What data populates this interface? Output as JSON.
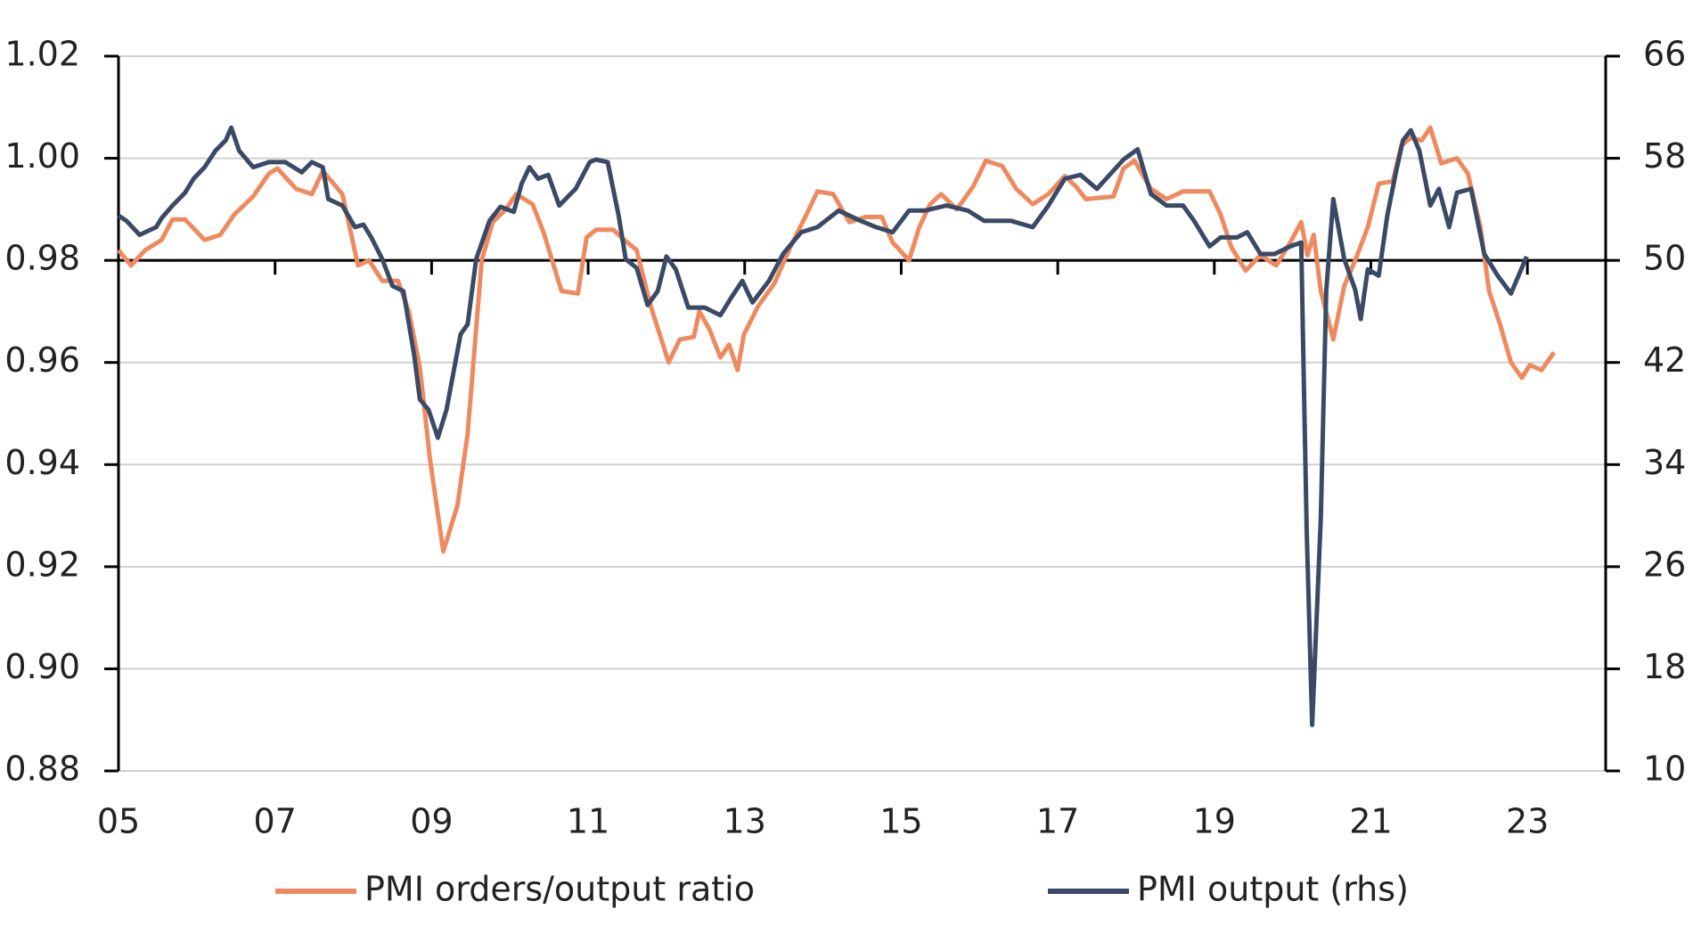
{
  "chart_data": {
    "type": "line",
    "xlim": [
      2005,
      2024
    ],
    "xticks": [
      {
        "value": 2005,
        "label": "05"
      },
      {
        "value": 2007,
        "label": "07"
      },
      {
        "value": 2009,
        "label": "09"
      },
      {
        "value": 2011,
        "label": "11"
      },
      {
        "value": 2013,
        "label": "13"
      },
      {
        "value": 2015,
        "label": "15"
      },
      {
        "value": 2017,
        "label": "17"
      },
      {
        "value": 2019,
        "label": "19"
      },
      {
        "value": 2021,
        "label": "21"
      },
      {
        "value": 2023,
        "label": "23"
      }
    ],
    "ylim": [
      0.88,
      1.02
    ],
    "yticks": [
      0.88,
      {
        "value": 0.9,
        "label": "0.90"
      },
      0.92,
      0.94,
      0.96,
      0.98,
      {
        "value": 1.0,
        "label": "1.00"
      },
      1.02
    ],
    "y2lim": [
      10,
      66
    ],
    "y2ticks": [
      10,
      18,
      26,
      34,
      42,
      50,
      58,
      66
    ],
    "grid": true,
    "reference_line": 0.98,
    "legend": "bottom",
    "series": [
      {
        "name": "PMI orders/output ratio",
        "color": "#ee8a5f",
        "x": [
          2005.0,
          2005.16,
          2005.34,
          2005.55,
          2005.69,
          2005.85,
          2006.1,
          2006.3,
          2006.48,
          2006.72,
          2006.92,
          2007.03,
          2007.27,
          2007.47,
          2007.61,
          2007.86,
          2008.06,
          2008.2,
          2008.37,
          2008.57,
          2008.71,
          2008.85,
          2008.98,
          2009.15,
          2009.33,
          2009.46,
          2009.64,
          2009.78,
          2009.95,
          2010.08,
          2010.29,
          2010.43,
          2010.56,
          2010.66,
          2010.87,
          2010.98,
          2011.1,
          2011.32,
          2011.46,
          2011.62,
          2011.8,
          2012.03,
          2012.17,
          2012.35,
          2012.42,
          2012.55,
          2012.69,
          2012.8,
          2012.91,
          2012.99,
          2013.17,
          2013.38,
          2013.58,
          2013.79,
          2013.93,
          2014.13,
          2014.34,
          2014.55,
          2014.75,
          2014.89,
          2015.1,
          2015.23,
          2015.37,
          2015.51,
          2015.71,
          2015.92,
          2016.08,
          2016.29,
          2016.47,
          2016.68,
          2016.88,
          2017.09,
          2017.23,
          2017.36,
          2017.71,
          2017.84,
          2017.98,
          2018.19,
          2018.39,
          2018.6,
          2018.94,
          2019.08,
          2019.22,
          2019.4,
          2019.59,
          2019.79,
          2019.97,
          2020.11,
          2020.19,
          2020.27,
          2020.36,
          2020.52,
          2020.66,
          2020.8,
          2020.96,
          2021.1,
          2021.28,
          2021.39,
          2021.51,
          2021.65,
          2021.76,
          2021.9,
          2022.1,
          2022.24,
          2022.4,
          2022.51,
          2022.65,
          2022.79,
          2022.93,
          2023.03,
          2023.18,
          2023.34
        ],
        "values": [
          0.982,
          0.979,
          0.982,
          0.984,
          0.988,
          0.988,
          0.984,
          0.985,
          0.989,
          0.9925,
          0.997,
          0.998,
          0.994,
          0.993,
          0.9975,
          0.993,
          0.979,
          0.98,
          0.976,
          0.976,
          0.97,
          0.959,
          0.941,
          0.923,
          0.932,
          0.946,
          0.98,
          0.9875,
          0.99,
          0.993,
          0.991,
          0.9855,
          0.979,
          0.974,
          0.9735,
          0.9845,
          0.986,
          0.986,
          0.984,
          0.982,
          0.971,
          0.96,
          0.9645,
          0.965,
          0.97,
          0.9665,
          0.961,
          0.9635,
          0.9585,
          0.9655,
          0.971,
          0.9755,
          0.9825,
          0.989,
          0.9935,
          0.993,
          0.9875,
          0.9885,
          0.9885,
          0.9835,
          0.98,
          0.9865,
          0.991,
          0.993,
          0.99,
          0.9945,
          0.9995,
          0.9985,
          0.994,
          0.991,
          0.993,
          0.9965,
          0.9945,
          0.992,
          0.9925,
          0.998,
          0.9995,
          0.994,
          0.992,
          0.9935,
          0.9935,
          0.989,
          0.9825,
          0.978,
          0.981,
          0.979,
          0.9835,
          0.9875,
          0.981,
          0.985,
          0.974,
          0.9645,
          0.975,
          0.98,
          0.9865,
          0.995,
          0.9955,
          1.0025,
          1.004,
          1.0035,
          1.006,
          0.999,
          1.0,
          0.997,
          0.9865,
          0.974,
          0.9675,
          0.96,
          0.957,
          0.9595,
          0.9585,
          0.962
        ]
      },
      {
        "name": "PMI output (rhs)",
        "color": "#3a4a66",
        "axis": "y2",
        "x": [
          2005.0,
          2005.1,
          2005.27,
          2005.48,
          2005.55,
          2005.69,
          2005.85,
          2005.96,
          2006.1,
          2006.24,
          2006.37,
          2006.44,
          2006.54,
          2006.72,
          2006.92,
          2007.13,
          2007.34,
          2007.47,
          2007.61,
          2007.68,
          2007.86,
          2008.02,
          2008.13,
          2008.23,
          2008.37,
          2008.5,
          2008.64,
          2008.78,
          2008.85,
          2008.96,
          2009.08,
          2009.19,
          2009.37,
          2009.46,
          2009.57,
          2009.74,
          2009.88,
          2010.05,
          2010.15,
          2010.25,
          2010.36,
          2010.49,
          2010.63,
          2010.84,
          2011.02,
          2011.1,
          2011.25,
          2011.39,
          2011.48,
          2011.62,
          2011.76,
          2011.89,
          2012.0,
          2012.12,
          2012.28,
          2012.49,
          2012.69,
          2012.83,
          2012.97,
          2013.1,
          2013.31,
          2013.49,
          2013.72,
          2013.93,
          2014.2,
          2014.48,
          2014.68,
          2014.89,
          2015.1,
          2015.3,
          2015.58,
          2015.85,
          2016.06,
          2016.4,
          2016.68,
          2016.88,
          2017.09,
          2017.29,
          2017.5,
          2017.84,
          2018.02,
          2018.19,
          2018.39,
          2018.6,
          2018.74,
          2018.94,
          2019.08,
          2019.29,
          2019.42,
          2019.59,
          2019.77,
          2019.97,
          2020.11,
          2020.18,
          2020.25,
          2020.36,
          2020.43,
          2020.52,
          2020.66,
          2020.8,
          2020.87,
          2020.96,
          2021.1,
          2021.21,
          2021.32,
          2021.41,
          2021.51,
          2021.62,
          2021.76,
          2021.87,
          2022.0,
          2022.1,
          2022.28,
          2022.45,
          2022.62,
          2022.79,
          2022.99
        ],
        "values": [
          53.5,
          53.1,
          52.0,
          52.6,
          53.3,
          54.3,
          55.3,
          56.4,
          57.3,
          58.6,
          59.4,
          60.4,
          58.6,
          57.3,
          57.7,
          57.7,
          56.9,
          57.7,
          57.3,
          54.8,
          54.3,
          52.6,
          52.8,
          51.8,
          50.1,
          48.0,
          47.6,
          42.5,
          39.1,
          38.3,
          36.1,
          38.3,
          44.2,
          45.0,
          50.1,
          53.1,
          54.2,
          53.8,
          56.0,
          57.3,
          56.4,
          56.7,
          54.3,
          55.6,
          57.7,
          57.9,
          57.7,
          53.5,
          50.1,
          49.4,
          46.5,
          47.6,
          50.3,
          49.3,
          46.3,
          46.3,
          45.7,
          47.1,
          48.4,
          46.7,
          48.4,
          50.5,
          52.2,
          52.6,
          53.9,
          53.1,
          52.6,
          52.2,
          53.9,
          53.9,
          54.3,
          53.9,
          53.1,
          53.1,
          52.6,
          54.3,
          56.4,
          56.7,
          55.6,
          57.9,
          58.7,
          55.2,
          54.3,
          54.3,
          53.1,
          51.1,
          51.8,
          51.8,
          52.2,
          50.5,
          50.5,
          51.1,
          51.4,
          29.0,
          13.6,
          29.8,
          47.6,
          54.8,
          50.1,
          47.7,
          45.4,
          49.3,
          48.8,
          53.5,
          56.9,
          59.4,
          60.2,
          58.6,
          54.3,
          55.6,
          52.6,
          55.3,
          55.6,
          50.5,
          48.8,
          47.4,
          50.3
        ]
      }
    ]
  }
}
